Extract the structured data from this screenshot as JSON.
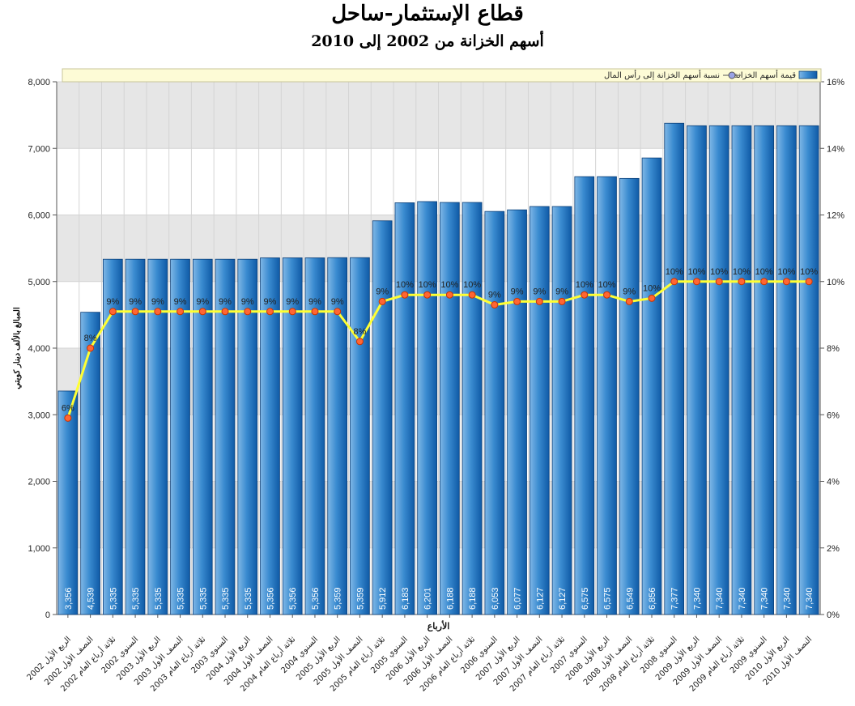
{
  "chart_data": {
    "type": "bar",
    "title": "قطاع الإستثمار-ساحل",
    "subtitle": "أسهم الخزانة من 2002 إلى 2010",
    "xlabel": "الأرباع",
    "ylabel": "المبالغ بالألف دينار كويتي",
    "ylim": [
      0,
      8000
    ],
    "yticks": [
      "0",
      "1,000",
      "2,000",
      "3,000",
      "4,000",
      "5,000",
      "6,000",
      "7,000",
      "8,000"
    ],
    "y2lim": [
      0,
      16
    ],
    "y2ticks": [
      "0%",
      "2%",
      "4%",
      "6%",
      "8%",
      "10%",
      "12%",
      "14%",
      "16%"
    ],
    "legend_position": "top-right",
    "categories": [
      "الربع الأول 2002",
      "النصف الأول 2002",
      "ثلاثة أرباع العام 2002",
      "السنوي 2002",
      "الربع الأول 2003",
      "النصف الأول 2003",
      "ثلاثة أرباع العام 2003",
      "السنوي 2003",
      "الربع الأول 2004",
      "النصف الأول 2004",
      "ثلاثة أرباع العام 2004",
      "السنوي 2004",
      "الربع الأول 2005",
      "النصف الأول 2005",
      "ثلاثة أرباع العام 2005",
      "السنوي 2005",
      "الربع الأول 2006",
      "النصف الأول 2006",
      "ثلاثة أرباع العام 2006",
      "السنوي 2006",
      "الربع الأول 2007",
      "النصف الأول 2007",
      "ثلاثة أرباع العام 2007",
      "السنوي 2007",
      "الربع الأول 2008",
      "النصف الأول 2008",
      "ثلاثة أرباع العام 2008",
      "السنوي 2008",
      "الربع الأول 2009",
      "النصف الأول 2009",
      "ثلاثة أرباع العام 2009",
      "السنوي 2009",
      "الربع الأول 2010",
      "النصف الأول 2010"
    ],
    "series": [
      {
        "name": "قيمة أسهم الخزانة",
        "type": "bar",
        "axis": "left",
        "color": "#2e7fc4",
        "values": [
          3356,
          4539,
          5335,
          5335,
          5335,
          5335,
          5335,
          5335,
          5335,
          5356,
          5356,
          5356,
          5359,
          5359,
          5912,
          6183,
          6201,
          6188,
          6188,
          6053,
          6077,
          6127,
          6127,
          6575,
          6575,
          6549,
          6856,
          7377,
          7340,
          7340,
          7340,
          7340,
          7340,
          7340
        ],
        "labels": [
          "3,356",
          "4,539",
          "5,335",
          "5,335",
          "5,335",
          "5,335",
          "5,335",
          "5,335",
          "5,335",
          "5,356",
          "5,356",
          "5,356",
          "5,359",
          "5,359",
          "5,912",
          "6,183",
          "6,201",
          "6,188",
          "6,188",
          "6,053",
          "6,077",
          "6,127",
          "6,127",
          "6,575",
          "6,575",
          "6,549",
          "6,856",
          "7,377",
          "7,340",
          "7,340",
          "7,340",
          "7,340",
          "7,340",
          "7,340"
        ]
      },
      {
        "name": "نسبة أسهم الخزانة إلى رأس المال",
        "type": "line",
        "axis": "right",
        "color": "#ffff33",
        "marker_color": "#ff6633",
        "values": [
          5.9,
          8.0,
          9.1,
          9.1,
          9.1,
          9.1,
          9.1,
          9.1,
          9.1,
          9.1,
          9.1,
          9.1,
          9.1,
          8.2,
          9.4,
          9.6,
          9.6,
          9.6,
          9.6,
          9.3,
          9.4,
          9.4,
          9.4,
          9.6,
          9.6,
          9.4,
          9.5,
          10.0,
          10.0,
          10.0,
          10.0,
          10.0,
          10.0,
          10.0
        ],
        "labels": [
          "6%",
          "8%",
          "9%",
          "9%",
          "9%",
          "9%",
          "9%",
          "9%",
          "9%",
          "9%",
          "9%",
          "9%",
          "9%",
          "8%",
          "9%",
          "10%",
          "10%",
          "10%",
          "10%",
          "9%",
          "9%",
          "9%",
          "9%",
          "10%",
          "10%",
          "9%",
          "10%",
          "10%",
          "10%",
          "10%",
          "10%",
          "10%",
          "10%",
          "10%"
        ]
      }
    ]
  }
}
